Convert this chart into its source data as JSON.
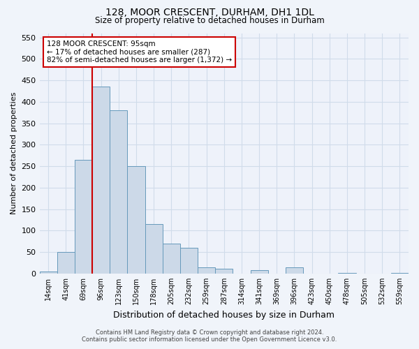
{
  "title_line1": "128, MOOR CRESCENT, DURHAM, DH1 1DL",
  "title_line2": "Size of property relative to detached houses in Durham",
  "xlabel": "Distribution of detached houses by size in Durham",
  "ylabel": "Number of detached properties",
  "footer_line1": "Contains HM Land Registry data © Crown copyright and database right 2024.",
  "footer_line2": "Contains public sector information licensed under the Open Government Licence v3.0.",
  "categories": [
    "14sqm",
    "41sqm",
    "69sqm",
    "96sqm",
    "123sqm",
    "150sqm",
    "178sqm",
    "205sqm",
    "232sqm",
    "259sqm",
    "287sqm",
    "314sqm",
    "341sqm",
    "369sqm",
    "396sqm",
    "423sqm",
    "450sqm",
    "478sqm",
    "505sqm",
    "532sqm",
    "559sqm"
  ],
  "values": [
    5,
    50,
    265,
    435,
    380,
    250,
    115,
    70,
    60,
    15,
    12,
    0,
    8,
    0,
    15,
    0,
    0,
    2,
    0,
    0,
    2
  ],
  "bar_color": "#ccd9e8",
  "bar_edge_color": "#6699bb",
  "grid_color": "#d0dcea",
  "property_line_x": 2.5,
  "property_line_color": "#cc0000",
  "annotation_text": "128 MOOR CRESCENT: 95sqm\n← 17% of detached houses are smaller (287)\n82% of semi-detached houses are larger (1,372) →",
  "annotation_box_color": "#ffffff",
  "annotation_box_edge": "#cc0000",
  "ylim": [
    0,
    560
  ],
  "yticks": [
    0,
    50,
    100,
    150,
    200,
    250,
    300,
    350,
    400,
    450,
    500,
    550
  ],
  "background_color": "#f0f4fa",
  "plot_bg_color": "#eef2fa"
}
